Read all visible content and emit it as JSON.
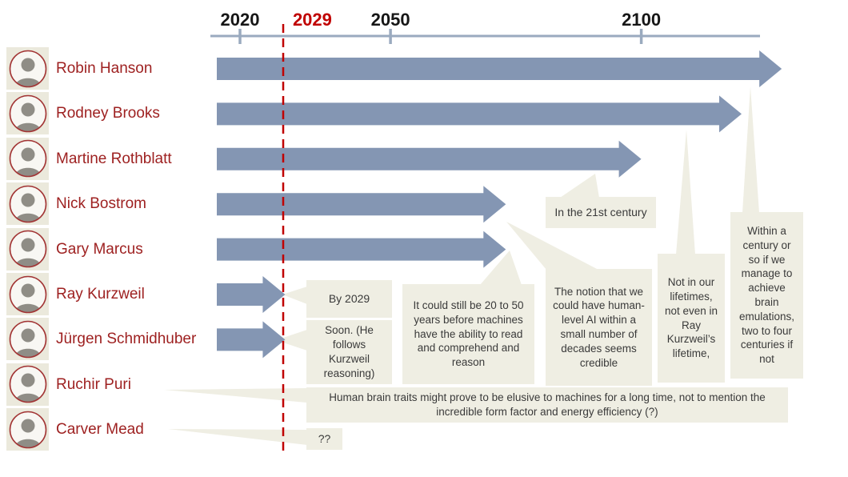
{
  "slide": {
    "background": "#FFFFFF",
    "description": "Timeline of expert predictions for human-level AI"
  },
  "timeline": {
    "ticks": [
      {
        "label": "2020",
        "year": 2020,
        "highlight": false
      },
      {
        "label": "2029",
        "year": 2029,
        "highlight": true
      },
      {
        "label": "2050",
        "year": 2050,
        "highlight": false
      },
      {
        "label": "2100",
        "year": 2100,
        "highlight": false
      }
    ],
    "marker_year": "2029"
  },
  "colors": {
    "arrow": "#8496B3",
    "axis": "#9AAABF",
    "accent_red": "#C00000",
    "name_red": "#9E2121",
    "callout_bg": "#EFEEE3",
    "callout_text": "#3A3A3A",
    "avatar_tile": "#EBE9DC",
    "avatar_ring": "#A23434"
  },
  "icons": {
    "avatar": "person-portrait-icon"
  },
  "people": [
    {
      "id": "hanson",
      "name": "Robin Hanson",
      "end_year": 2128,
      "quote": "Within a century or so if we manage to achieve brain emulations, two to four centuries if not"
    },
    {
      "id": "brooks",
      "name": "Rodney Brooks",
      "end_year": 2120,
      "quote": "Not in our lifetimes, not even in Ray Kurzweil’s lifetime,"
    },
    {
      "id": "rothblatt",
      "name": "Martine Rothblatt",
      "end_year": 2100,
      "quote": "In the 21st century"
    },
    {
      "id": "bostrom",
      "name": "Nick Bostrom",
      "end_year": 2073,
      "quote": "The notion that we could have human-level AI within a small number of decades seems credible"
    },
    {
      "id": "marcus",
      "name": "Gary Marcus",
      "end_year": 2073,
      "quote": "It could still be 20 to 50 years before machines have the ability to read and comprehend and reason"
    },
    {
      "id": "kurzweil",
      "name": "Ray Kurzweil",
      "end_year": 2029,
      "quote": "By 2029"
    },
    {
      "id": "schmidhuber",
      "name": "Jürgen Schmidhuber",
      "end_year": 2029,
      "quote": "Soon. (He follows Kurzweil reasoning)"
    },
    {
      "id": "puri",
      "name": "Ruchir Puri",
      "end_year": null,
      "quote": "Human brain traits might prove to be elusive to machines for a long time, not to mention the incredible form factor and energy efficiency (?)"
    },
    {
      "id": "mead",
      "name": "Carver Mead",
      "end_year": null,
      "quote": "??"
    }
  ]
}
